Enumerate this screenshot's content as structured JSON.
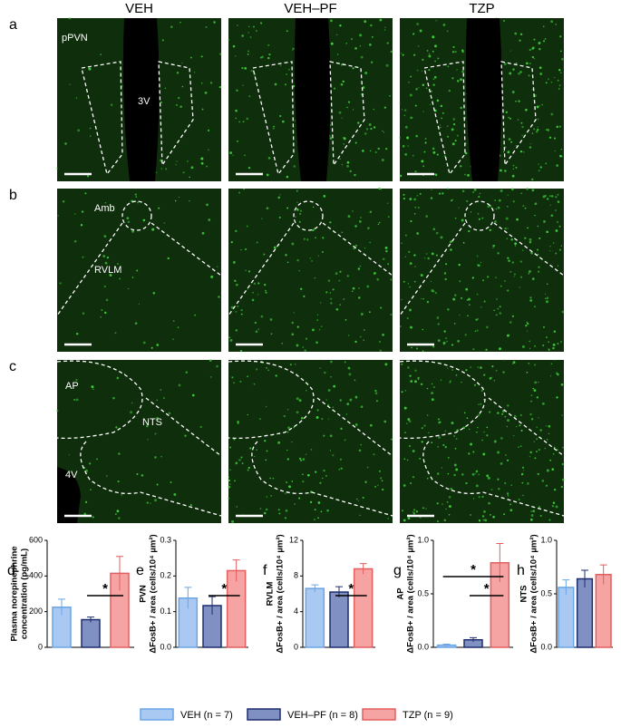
{
  "figure": {
    "columns": [
      "VEH",
      "VEH–PF",
      "TZP"
    ],
    "panels": [
      {
        "letter": "a",
        "labels": [
          "pPVN",
          "3V"
        ]
      },
      {
        "letter": "b",
        "labels": [
          "Amb",
          "RVLM"
        ]
      },
      {
        "letter": "c",
        "labels": [
          "AP",
          "NTS",
          "4V"
        ]
      }
    ]
  },
  "legend": [
    {
      "name": "VEH (n = 7)",
      "color": "#a9c9f2",
      "edge": "#6aa5e6"
    },
    {
      "name": "VEH–PF (n = 8)",
      "color": "#8190c2",
      "edge": "#1e2d6e"
    },
    {
      "name": "TZP (n = 9)",
      "color": "#f5a3a3",
      "edge": "#e45f5f"
    }
  ],
  "chart_data": [
    {
      "type": "bar",
      "letter": "d",
      "ylabel": [
        "Plasma norepinephrine",
        "concentration (pg/mL)"
      ],
      "values": [
        225,
        155,
        415
      ],
      "errors": [
        45,
        15,
        95
      ],
      "ylim": [
        0,
        600
      ],
      "yticks": [
        0,
        200,
        400,
        600
      ],
      "significance": [
        {
          "pair": [
            1,
            2
          ],
          "label": "*"
        }
      ]
    },
    {
      "type": "bar",
      "letter": "e",
      "ylabel": [
        "PVN",
        "ΔFosB+ / area (cells/10⁴ µm²)"
      ],
      "values": [
        0.138,
        0.117,
        0.215
      ],
      "errors": [
        0.03,
        0.025,
        0.03
      ],
      "ylim": [
        0,
        0.3
      ],
      "yticks": [
        {
          "value": 0,
          "label": "0.0"
        },
        0.1,
        0.2,
        0.3
      ],
      "significance": [
        {
          "pair": [
            1,
            2
          ],
          "label": "*"
        }
      ]
    },
    {
      "type": "bar",
      "letter": "f",
      "ylabel": [
        "RVLM",
        "ΔFosB+ / area (cells/10⁴ µm²)"
      ],
      "values": [
        6.6,
        6.2,
        8.8
      ],
      "errors": [
        0.4,
        0.6,
        0.6
      ],
      "ylim": [
        0,
        12
      ],
      "yticks": [
        0,
        4,
        8,
        12
      ],
      "significance": [
        {
          "pair": [
            1,
            2
          ],
          "label": "*"
        }
      ]
    },
    {
      "type": "bar",
      "letter": "g",
      "ylabel": [
        "AP",
        "ΔFosB+ / area (cells/10⁴ µm²)"
      ],
      "values": [
        0.02,
        0.07,
        0.79
      ],
      "errors": [
        0.01,
        0.02,
        0.18
      ],
      "ylim": [
        0,
        1
      ],
      "yticks": [
        {
          "value": 0,
          "label": "0.0"
        },
        0.5,
        {
          "value": 1,
          "label": "1.0"
        }
      ],
      "significance": [
        {
          "pair": [
            1,
            2
          ],
          "label": "*"
        },
        {
          "pair": [
            0,
            2
          ],
          "label": "*"
        }
      ]
    },
    {
      "type": "bar",
      "letter": "h",
      "ylabel": [
        "NTS",
        "ΔFosB+ / area (cells/10⁴ µm²)"
      ],
      "values": [
        0.56,
        0.64,
        0.68
      ],
      "errors": [
        0.07,
        0.08,
        0.09
      ],
      "ylim": [
        0,
        1
      ],
      "yticks": [
        {
          "value": 0,
          "label": "0.0"
        },
        0.5,
        {
          "value": 1,
          "label": "1.0"
        }
      ],
      "significance": []
    }
  ]
}
